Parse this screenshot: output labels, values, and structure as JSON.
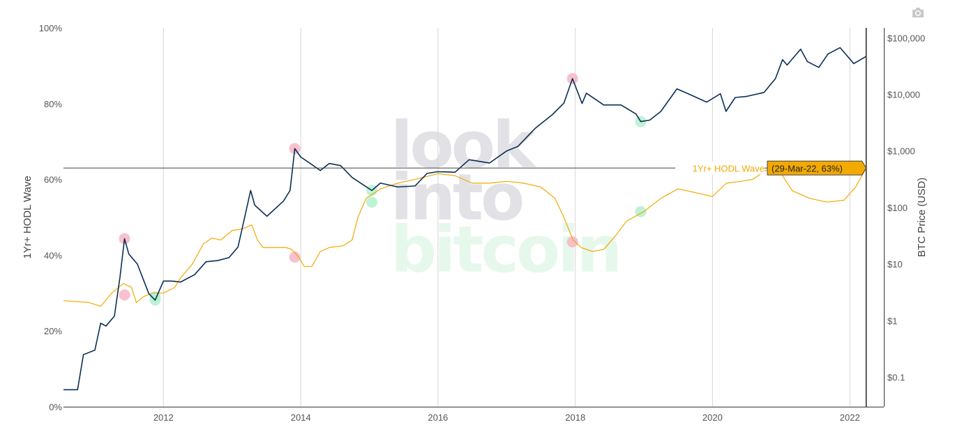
{
  "chart_data": {
    "type": "line",
    "x_range": [
      "2010-07-18",
      "2022-07-01"
    ],
    "x_ticks": [
      "2012",
      "2014",
      "2016",
      "2018",
      "2020",
      "2022"
    ],
    "y_left": {
      "label": "1Yr+ HODL Wave",
      "range": [
        0,
        100
      ],
      "ticks": [
        "0%",
        "20%",
        "40%",
        "60%",
        "80%",
        "100%"
      ]
    },
    "y_right": {
      "label": "BTC Price (USD)",
      "scale": "log",
      "range": [
        0.03,
        150000
      ],
      "ticks": [
        "$0.1",
        "$1",
        "$10",
        "$100",
        "$1,000",
        "$10,000",
        "$100,000"
      ]
    },
    "grid_x": true,
    "series": [
      {
        "name": "1Yr+ HODL Wave",
        "axis": "left",
        "color": "#F2A900",
        "points": [
          [
            "2010-07-18",
            28.0
          ],
          [
            "2010-12-01",
            27.5
          ],
          [
            "2011-02-01",
            26.5
          ],
          [
            "2011-04-01",
            30.0
          ],
          [
            "2011-06-01",
            32.5
          ],
          [
            "2011-07-15",
            31.5
          ],
          [
            "2011-08-10",
            27.5
          ],
          [
            "2011-09-15",
            29.0
          ],
          [
            "2011-11-01",
            30.0
          ],
          [
            "2012-01-01",
            30.0
          ],
          [
            "2012-03-01",
            31.5
          ],
          [
            "2012-04-01",
            34.0
          ],
          [
            "2012-06-01",
            37.5
          ],
          [
            "2012-08-01",
            43.0
          ],
          [
            "2012-09-15",
            44.5
          ],
          [
            "2012-11-01",
            44.0
          ],
          [
            "2013-01-01",
            46.5
          ],
          [
            "2013-03-01",
            47.0
          ],
          [
            "2013-04-15",
            48.0
          ],
          [
            "2013-05-15",
            44.0
          ],
          [
            "2013-06-15",
            42.0
          ],
          [
            "2013-08-15",
            42.0
          ],
          [
            "2013-10-15",
            42.0
          ],
          [
            "2013-11-15",
            41.5
          ],
          [
            "2013-12-20",
            39.5
          ],
          [
            "2014-01-20",
            37.0
          ],
          [
            "2014-03-01",
            37.0
          ],
          [
            "2014-04-15",
            41.0
          ],
          [
            "2014-06-01",
            42.0
          ],
          [
            "2014-08-15",
            42.5
          ],
          [
            "2014-10-01",
            44.0
          ],
          [
            "2014-11-01",
            50.0
          ],
          [
            "2014-12-15",
            55.0
          ],
          [
            "2015-03-01",
            57.5
          ],
          [
            "2015-06-01",
            59.0
          ],
          [
            "2015-09-01",
            60.0
          ],
          [
            "2016-01-01",
            61.5
          ],
          [
            "2016-04-01",
            61.0
          ],
          [
            "2016-07-01",
            59.0
          ],
          [
            "2016-10-01",
            59.0
          ],
          [
            "2017-01-01",
            59.5
          ],
          [
            "2017-04-01",
            59.0
          ],
          [
            "2017-07-01",
            58.0
          ],
          [
            "2017-09-15",
            55.0
          ],
          [
            "2017-11-01",
            50.0
          ],
          [
            "2017-12-20",
            44.0
          ],
          [
            "2018-02-01",
            42.0
          ],
          [
            "2018-04-01",
            41.0
          ],
          [
            "2018-06-01",
            41.5
          ],
          [
            "2018-08-01",
            45.0
          ],
          [
            "2018-10-01",
            49.0
          ],
          [
            "2019-01-01",
            51.5
          ],
          [
            "2019-04-01",
            55.0
          ],
          [
            "2019-07-01",
            57.5
          ],
          [
            "2019-10-01",
            56.5
          ],
          [
            "2020-01-01",
            55.5
          ],
          [
            "2020-03-15",
            59.0
          ],
          [
            "2020-06-01",
            59.5
          ],
          [
            "2020-08-01",
            60.0
          ],
          [
            "2020-11-01",
            63.0
          ],
          [
            "2021-01-01",
            61.5
          ],
          [
            "2021-03-01",
            57.0
          ],
          [
            "2021-06-01",
            55.0
          ],
          [
            "2021-09-01",
            54.0
          ],
          [
            "2021-12-01",
            54.5
          ],
          [
            "2022-02-01",
            58.0
          ],
          [
            "2022-03-29",
            63.0
          ]
        ]
      },
      {
        "name": "BTC Price (USD)",
        "axis": "right",
        "color": "#0A2E55",
        "points": [
          [
            "2010-07-18",
            0.06
          ],
          [
            "2010-08-01",
            0.06
          ],
          [
            "2010-10-01",
            0.06
          ],
          [
            "2010-11-01",
            0.25
          ],
          [
            "2011-01-01",
            0.3
          ],
          [
            "2011-02-01",
            0.9
          ],
          [
            "2011-03-01",
            0.8
          ],
          [
            "2011-04-15",
            1.2
          ],
          [
            "2011-05-15",
            6.0
          ],
          [
            "2011-06-08",
            28.0
          ],
          [
            "2011-07-01",
            15.0
          ],
          [
            "2011-08-15",
            10.0
          ],
          [
            "2011-10-15",
            3.0
          ],
          [
            "2011-11-18",
            2.3
          ],
          [
            "2012-01-01",
            5.0
          ],
          [
            "2012-02-15",
            5.0
          ],
          [
            "2012-04-01",
            4.8
          ],
          [
            "2012-06-15",
            6.5
          ],
          [
            "2012-08-15",
            11.0
          ],
          [
            "2012-10-15",
            11.5
          ],
          [
            "2012-12-15",
            13.0
          ],
          [
            "2013-02-01",
            20.0
          ],
          [
            "2013-04-09",
            200.0
          ],
          [
            "2013-05-01",
            110.0
          ],
          [
            "2013-07-05",
            70.0
          ],
          [
            "2013-10-01",
            130.0
          ],
          [
            "2013-11-05",
            200.0
          ],
          [
            "2013-11-30",
            1100.0
          ],
          [
            "2014-01-01",
            780.0
          ],
          [
            "2014-02-20",
            600.0
          ],
          [
            "2014-04-15",
            450.0
          ],
          [
            "2014-06-01",
            600.0
          ],
          [
            "2014-08-01",
            550.0
          ],
          [
            "2014-10-01",
            340.0
          ],
          [
            "2015-01-14",
            200.0
          ],
          [
            "2015-03-01",
            270.0
          ],
          [
            "2015-06-01",
            230.0
          ],
          [
            "2015-09-01",
            240.0
          ],
          [
            "2015-11-04",
            400.0
          ],
          [
            "2016-01-01",
            430.0
          ],
          [
            "2016-04-01",
            420.0
          ],
          [
            "2016-06-15",
            700.0
          ],
          [
            "2016-10-01",
            610.0
          ],
          [
            "2017-01-01",
            1000.0
          ],
          [
            "2017-03-01",
            1200.0
          ],
          [
            "2017-06-01",
            2500.0
          ],
          [
            "2017-09-01",
            4400.0
          ],
          [
            "2017-11-01",
            7000.0
          ],
          [
            "2017-12-17",
            19000.0
          ],
          [
            "2018-02-06",
            6900.0
          ],
          [
            "2018-03-01",
            10500.0
          ],
          [
            "2018-06-01",
            6500.0
          ],
          [
            "2018-09-01",
            6500.0
          ],
          [
            "2018-11-20",
            4500.0
          ],
          [
            "2018-12-15",
            3300.0
          ],
          [
            "2019-02-01",
            3500.0
          ],
          [
            "2019-04-01",
            5000.0
          ],
          [
            "2019-06-26",
            12500.0
          ],
          [
            "2019-09-01",
            10000.0
          ],
          [
            "2019-12-01",
            7300.0
          ],
          [
            "2020-02-12",
            10300.0
          ],
          [
            "2020-03-13",
            5000.0
          ],
          [
            "2020-05-01",
            8800.0
          ],
          [
            "2020-07-01",
            9200.0
          ],
          [
            "2020-10-01",
            10800.0
          ],
          [
            "2020-12-01",
            19000.0
          ],
          [
            "2021-01-08",
            41000.0
          ],
          [
            "2021-02-01",
            33000.0
          ],
          [
            "2021-04-14",
            63000.0
          ],
          [
            "2021-05-20",
            38000.0
          ],
          [
            "2021-07-20",
            30000.0
          ],
          [
            "2021-09-07",
            52000.0
          ],
          [
            "2021-11-10",
            67000.0
          ],
          [
            "2022-01-22",
            35000.0
          ],
          [
            "2022-03-29",
            47000.0
          ]
        ]
      }
    ],
    "hover": {
      "date": "2022-03-29",
      "value": 63,
      "series_label": "1Yr+ HODL Wave",
      "text": "(29-Mar-22, 63%)"
    }
  },
  "markers": {
    "peak_color": "#F7B6C4",
    "bottom_color": "#B4F0D0",
    "price_peaks": [
      [
        "2011-06-08",
        28.0
      ],
      [
        "2013-11-30",
        1100.0
      ],
      [
        "2017-12-17",
        19000.0
      ]
    ],
    "price_bottoms": [
      [
        "2011-11-18",
        2.3
      ],
      [
        "2015-01-14",
        200.0
      ],
      [
        "2018-12-15",
        3300.0
      ]
    ],
    "wave_peaks": [
      [
        "2011-06-08",
        29.5
      ],
      [
        "2013-11-30",
        39.5
      ],
      [
        "2017-12-17",
        43.5
      ]
    ],
    "wave_bottoms": [
      [
        "2011-11-18",
        29.0
      ],
      [
        "2015-01-14",
        54.0
      ],
      [
        "2018-12-15",
        51.5
      ]
    ]
  },
  "watermark": {
    "line1": "look",
    "line2": "into",
    "line3": "bitcoin"
  },
  "toolbar": {
    "camera_icon": "camera-icon"
  }
}
